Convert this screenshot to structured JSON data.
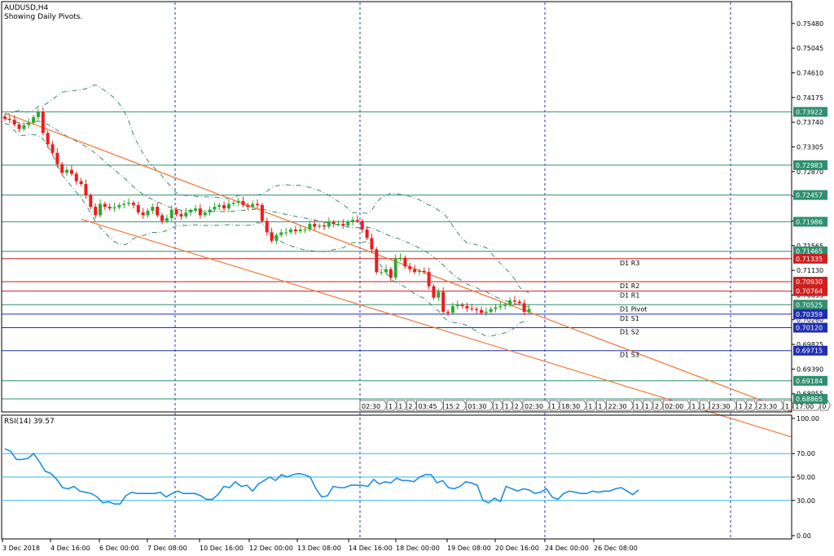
{
  "header": {
    "symbol": "AUDUSD,H4",
    "subtitle": "Showing Daily Pivots."
  },
  "colors": {
    "bull": "#2eaa2e",
    "bear": "#ee1c1c",
    "channel": "#f07a3c",
    "bands": "#3a8a6a",
    "level": "#2f8f6f",
    "resist": "#cc1f1f",
    "support": "#1f2fb0",
    "grid": "#2233cc",
    "rsi": "#1e8fe0",
    "rsi_level": "#37b8e0"
  },
  "price_axis": {
    "ticks": [
      "0.75480",
      "0.75045",
      "0.74610",
      "0.74175",
      "0.73740",
      "0.73305",
      "0.72870",
      "0.72435",
      "0.72000",
      "0.71565",
      "0.71130",
      "0.70695",
      "0.70260",
      "0.69825",
      "0.69390",
      "0.68955"
    ],
    "tags": [
      {
        "value": "0.73922",
        "kind": "level"
      },
      {
        "value": "0.72983",
        "kind": "level"
      },
      {
        "value": "0.72457",
        "kind": "level"
      },
      {
        "value": "0.71986",
        "kind": "level"
      },
      {
        "value": "0.71465",
        "kind": "level"
      },
      {
        "value": "0.71335",
        "kind": "resist"
      },
      {
        "value": "0.70930",
        "kind": "resist"
      },
      {
        "value": "0.70764",
        "kind": "resist"
      },
      {
        "value": "0.70525",
        "kind": "level"
      },
      {
        "value": "0.70359",
        "kind": "support"
      },
      {
        "value": "0.70120",
        "kind": "support"
      },
      {
        "value": "0.69715",
        "kind": "support"
      },
      {
        "value": "0.69184",
        "kind": "level"
      },
      {
        "value": "0.68865",
        "kind": "level"
      }
    ]
  },
  "pivot_labels": [
    {
      "text": "D1  R3",
      "value": 0.71335,
      "kind": "resist"
    },
    {
      "text": "D1  R2",
      "value": 0.7093,
      "kind": "resist"
    },
    {
      "text": "D1  R1",
      "value": 0.70764,
      "kind": "resist"
    },
    {
      "text": "D1  Pivot",
      "value": 0.70525,
      "kind": "level"
    },
    {
      "text": "D1  S1",
      "value": 0.70359,
      "kind": "support"
    },
    {
      "text": "D1  S2",
      "value": 0.7012,
      "kind": "support"
    },
    {
      "text": "D1  S3",
      "value": 0.69715,
      "kind": "support"
    }
  ],
  "event_flags": [
    "02:30",
    "1",
    "1",
    "2",
    "03:45",
    "15:2",
    "01:30",
    "1",
    "1",
    "2",
    "02:30",
    "1",
    "18:30",
    "1",
    "1",
    "22:30",
    "1",
    "1",
    "2",
    "02:00",
    "1",
    "1",
    "23:30",
    "1",
    "2",
    "23:30",
    "1",
    "17:00",
    "0"
  ],
  "rsi": {
    "label": "RSI(14) 39.57",
    "ticks": [
      "100.00",
      "70.00",
      "50.00",
      "30.00",
      "0.00"
    ],
    "levels": [
      70,
      50,
      30
    ],
    "values": [
      74,
      72,
      65,
      65,
      66,
      70,
      63,
      55,
      53,
      48,
      41,
      40,
      42,
      38,
      37,
      36,
      33,
      28,
      29,
      27,
      27,
      34,
      37,
      36,
      36,
      36,
      36,
      37,
      33,
      36,
      38,
      36,
      36,
      36,
      34,
      31,
      31,
      35,
      42,
      41,
      46,
      42,
      43,
      38,
      44,
      47,
      50,
      47,
      52,
      50,
      52,
      53,
      52,
      50,
      40,
      33,
      34,
      42,
      41,
      41,
      43,
      43,
      43,
      42,
      48,
      44,
      46,
      45,
      49,
      47,
      47,
      46,
      50,
      52,
      52,
      45,
      47,
      41,
      40,
      42,
      46,
      45,
      43,
      30,
      28,
      32,
      29,
      42,
      40,
      38,
      40,
      39,
      36,
      37,
      40,
      33,
      31,
      36,
      38,
      37,
      36,
      36,
      38,
      37,
      38,
      38,
      40,
      41,
      38,
      35,
      39
    ]
  },
  "time_axis": {
    "labels": [
      "3 Dec 2018",
      "4 Dec 16:00",
      "6 Dec 00:00",
      "7 Dec 08:00",
      "10 Dec 16:00",
      "12 Dec 00:00",
      "13 Dec 08:00",
      "14 Dec 16:00",
      "18 Dec 00:00",
      "19 Dec 08:00",
      "20 Dec 16:00",
      "24 Dec 00:00",
      "26 Dec 08:00"
    ]
  },
  "chart_data": {
    "type": "candlestick",
    "title": "AUDUSD,H4",
    "subtitle": "Showing Daily Pivots.",
    "ylim": [
      0.6865,
      0.7585
    ],
    "pivots": {
      "R3": 0.71335,
      "R2": 0.7093,
      "R1": 0.70764,
      "Pivot": 0.70525,
      "S1": 0.70359,
      "S2": 0.7012,
      "S3": 0.69715
    },
    "horizontal_levels": [
      0.73922,
      0.72983,
      0.72457,
      0.71986,
      0.71465,
      0.69184,
      0.68865
    ],
    "closes": [
      0.738,
      0.7378,
      0.737,
      0.7362,
      0.7369,
      0.7373,
      0.7383,
      0.7392,
      0.7355,
      0.7335,
      0.732,
      0.73,
      0.7285,
      0.729,
      0.7283,
      0.727,
      0.7265,
      0.7245,
      0.7225,
      0.721,
      0.723,
      0.7225,
      0.7222,
      0.7224,
      0.7228,
      0.723,
      0.7232,
      0.7228,
      0.7215,
      0.721,
      0.7218,
      0.7225,
      0.721,
      0.72,
      0.7205,
      0.722,
      0.7212,
      0.7208,
      0.7215,
      0.7218,
      0.7222,
      0.721,
      0.7215,
      0.722,
      0.7225,
      0.7228,
      0.7222,
      0.723,
      0.7232,
      0.7235,
      0.7228,
      0.7225,
      0.723,
      0.7228,
      0.72,
      0.718,
      0.7165,
      0.7175,
      0.718,
      0.718,
      0.7185,
      0.7182,
      0.7185,
      0.7185,
      0.7195,
      0.719,
      0.7192,
      0.719,
      0.7198,
      0.7195,
      0.7195,
      0.7192,
      0.7198,
      0.7202,
      0.72,
      0.7185,
      0.717,
      0.715,
      0.711,
      0.711,
      0.7115,
      0.71,
      0.7135,
      0.7135,
      0.712,
      0.7115,
      0.711,
      0.7112,
      0.711,
      0.7085,
      0.7065,
      0.7075,
      0.704,
      0.7038,
      0.705,
      0.7052,
      0.705,
      0.7046,
      0.7045,
      0.7043,
      0.7038,
      0.704,
      0.7045,
      0.7048,
      0.705,
      0.7052,
      0.706,
      0.7058,
      0.7055,
      0.704,
      0.7045
    ],
    "channel": {
      "upper": [
        [
          0,
          0.739
        ],
        [
          110,
          0.7047
        ]
      ],
      "lower": [
        [
          16,
          0.7203
        ],
        [
          110,
          0.6972
        ]
      ]
    },
    "x_labels": [
      "3 Dec 2018",
      "4 Dec 16:00",
      "6 Dec 00:00",
      "7 Dec 08:00",
      "10 Dec 16:00",
      "12 Dec 00:00",
      "13 Dec 08:00",
      "14 Dec 16:00",
      "18 Dec 00:00",
      "19 Dec 08:00",
      "20 Dec 16:00",
      "24 Dec 00:00",
      "26 Dec 08:00"
    ],
    "indicator": {
      "name": "RSI(14)",
      "last": 39.57,
      "ylim": [
        0,
        100
      ],
      "levels": [
        70,
        50,
        30
      ]
    }
  }
}
